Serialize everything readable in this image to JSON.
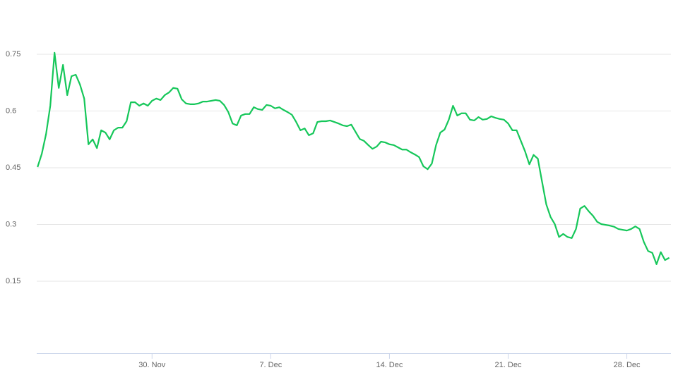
{
  "chart_data": {
    "type": "line",
    "x": [
      23.25,
      23.5,
      23.75,
      24,
      24.25,
      24.5,
      24.75,
      25,
      25.25,
      25.5,
      25.75,
      26,
      26.25,
      26.5,
      26.75,
      27,
      27.25,
      27.5,
      27.75,
      28,
      28.25,
      28.5,
      28.75,
      29,
      29.25,
      29.5,
      29.75,
      30,
      30.25,
      30.5,
      30.75,
      31,
      31.25,
      31.5,
      31.75,
      32,
      32.25,
      32.5,
      32.75,
      33,
      33.25,
      33.5,
      33.75,
      34,
      34.25,
      34.5,
      34.75,
      35,
      35.25,
      35.5,
      35.75,
      36,
      36.25,
      36.5,
      36.75,
      37,
      37.25,
      37.5,
      37.75,
      38,
      38.25,
      38.5,
      38.75,
      39,
      39.25,
      39.5,
      39.75,
      40,
      40.25,
      40.5,
      40.75,
      41,
      41.25,
      41.5,
      41.75,
      42,
      42.25,
      42.5,
      42.75,
      43,
      43.25,
      43.5,
      43.75,
      44,
      44.25,
      44.5,
      44.75,
      45,
      45.25,
      45.5,
      45.75,
      46,
      46.25,
      46.5,
      46.75,
      47,
      47.25,
      47.5,
      47.75,
      48,
      48.25,
      48.5,
      48.75,
      49,
      49.25,
      49.5,
      49.75,
      50,
      50.25,
      50.5,
      50.75,
      51,
      51.25,
      51.5,
      51.75,
      52,
      52.25,
      52.5,
      52.75,
      53,
      53.25,
      53.5,
      53.75,
      54,
      54.25,
      54.5,
      54.75,
      55,
      55.25,
      55.5,
      55.75,
      56,
      56.25,
      56.5,
      56.75,
      57,
      57.25,
      57.5,
      57.75,
      58,
      58.25,
      58.5,
      58.75,
      59,
      59.25,
      59.5,
      59.75,
      60,
      60.25,
      60.5
    ],
    "series": [
      {
        "color": "#16c75a",
        "values": [
          0.452,
          0.487,
          0.539,
          0.614,
          0.754,
          0.661,
          0.722,
          0.642,
          0.692,
          0.696,
          0.67,
          0.633,
          0.512,
          0.525,
          0.502,
          0.549,
          0.543,
          0.525,
          0.549,
          0.556,
          0.556,
          0.573,
          0.623,
          0.623,
          0.614,
          0.62,
          0.614,
          0.627,
          0.633,
          0.629,
          0.642,
          0.649,
          0.661,
          0.659,
          0.631,
          0.62,
          0.618,
          0.618,
          0.62,
          0.625,
          0.625,
          0.627,
          0.629,
          0.627,
          0.616,
          0.597,
          0.567,
          0.562,
          0.588,
          0.592,
          0.592,
          0.61,
          0.605,
          0.603,
          0.616,
          0.614,
          0.607,
          0.61,
          0.603,
          0.597,
          0.59,
          0.571,
          0.549,
          0.554,
          0.536,
          0.541,
          0.571,
          0.573,
          0.573,
          0.575,
          0.571,
          0.567,
          0.562,
          0.56,
          0.564,
          0.545,
          0.526,
          0.521,
          0.51,
          0.5,
          0.506,
          0.519,
          0.517,
          0.512,
          0.51,
          0.504,
          0.498,
          0.498,
          0.491,
          0.485,
          0.478,
          0.454,
          0.446,
          0.461,
          0.51,
          0.543,
          0.551,
          0.577,
          0.614,
          0.588,
          0.594,
          0.594,
          0.577,
          0.575,
          0.584,
          0.577,
          0.579,
          0.586,
          0.582,
          0.579,
          0.577,
          0.567,
          0.549,
          0.549,
          0.521,
          0.493,
          0.459,
          0.484,
          0.474,
          0.413,
          0.353,
          0.32,
          0.301,
          0.267,
          0.275,
          0.267,
          0.264,
          0.288,
          0.342,
          0.349,
          0.335,
          0.323,
          0.307,
          0.301,
          0.299,
          0.297,
          0.294,
          0.288,
          0.286,
          0.284,
          0.288,
          0.295,
          0.288,
          0.254,
          0.23,
          0.225,
          0.195,
          0.227,
          0.206,
          0.212
        ]
      }
    ],
    "xlim": [
      23.2,
      60.6
    ],
    "xticks": [
      {
        "value": 30,
        "label": "30. Nov"
      },
      {
        "value": 37,
        "label": "7. Dec"
      },
      {
        "value": 44,
        "label": "14. Dec"
      },
      {
        "value": 51,
        "label": "21. Dec"
      },
      {
        "value": 58,
        "label": "28. Dec"
      }
    ],
    "ylim": [
      -0.04,
      0.84
    ],
    "yticks": [
      0.15,
      0.3,
      0.45,
      0.6,
      0.75
    ],
    "grid": true
  }
}
